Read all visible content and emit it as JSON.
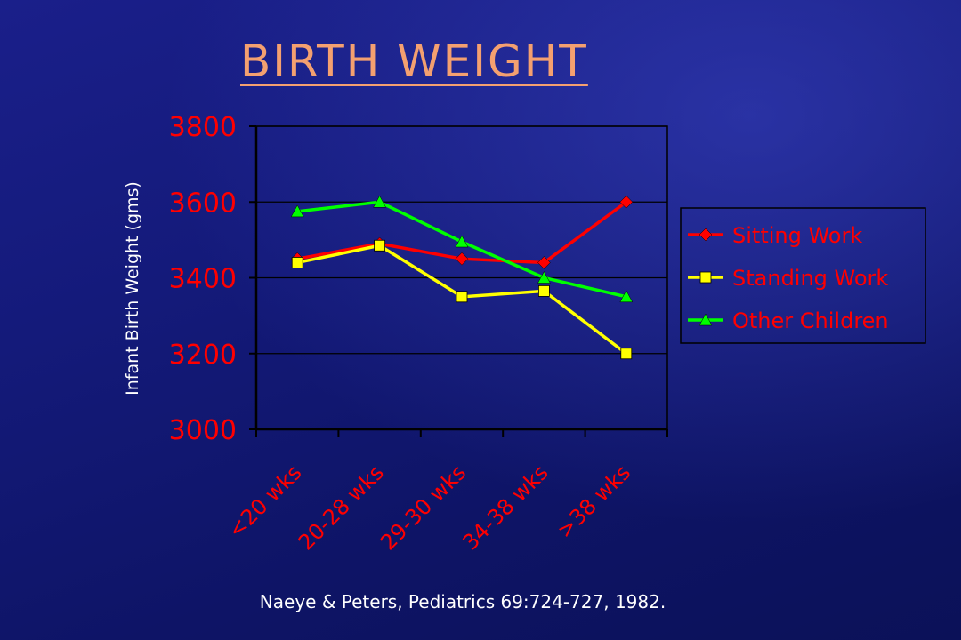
{
  "title": "BIRTH WEIGHT",
  "citation": "Naeye & Peters, Pediatrics 69:724-727, 1982.",
  "chart_data": {
    "type": "line",
    "categories": [
      "<20 wks",
      "20-28 wks",
      "29-30 wks",
      "34-38 wks",
      ">38 wks"
    ],
    "ylabel": "Infant Birth Weight (gms)",
    "xlabel": "",
    "ylim": [
      3000,
      3800
    ],
    "yticks": [
      3000,
      3200,
      3400,
      3600,
      3800
    ],
    "grid": true,
    "legend_position": "right",
    "series": [
      {
        "name": "Sitting Work",
        "color": "#ff0000",
        "marker": "diamond",
        "values": [
          3450,
          3490,
          3450,
          3440,
          3600
        ]
      },
      {
        "name": "Standing Work",
        "color": "#ffff00",
        "marker": "square",
        "values": [
          3440,
          3485,
          3350,
          3365,
          3200
        ]
      },
      {
        "name": "Other Children",
        "color": "#00ff00",
        "marker": "triangle",
        "values": [
          3575,
          3600,
          3495,
          3400,
          3350
        ]
      }
    ],
    "colors": {
      "tick_labels": "#ff0000",
      "axis": "#000000",
      "legend_text": "#ff0000"
    }
  }
}
